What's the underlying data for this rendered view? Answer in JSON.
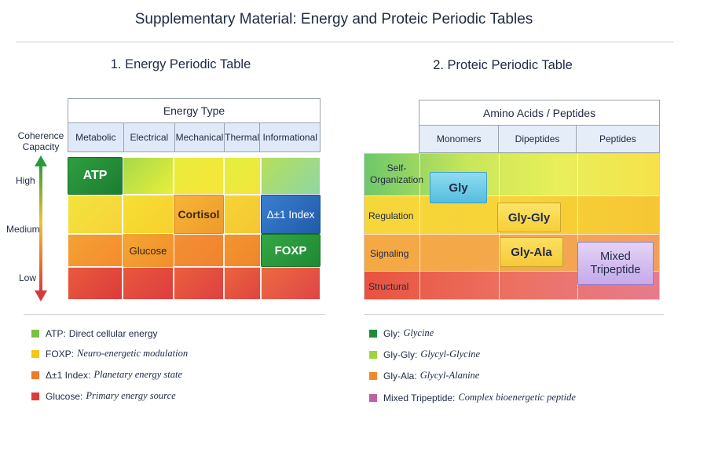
{
  "title": "Supplementary Material: Energy and Proteic Periodic Tables",
  "energy": {
    "section_title": "1. Energy Periodic Table",
    "header": "Energy Type",
    "columns": [
      "Metabolic",
      "Electrical",
      "Mechanical",
      "Thermal",
      "Informational"
    ],
    "axis_label": "Coherence Capacity",
    "axis_levels": [
      "High",
      "Medium",
      "Low"
    ],
    "tiles": {
      "atp": "ATP",
      "cortisol": "Cortisol",
      "index": "Δ±1 Index",
      "glucose": "Glucose",
      "foxp": "FOXP"
    },
    "legend": [
      {
        "term": "ATP:",
        "desc": "Direct cellular energy",
        "color": "#7ac143"
      },
      {
        "term": "FOXP:",
        "desc": "Neuro-energetic modulation",
        "color": "#f5c518"
      },
      {
        "term": "Δ±1 Index:",
        "desc": "Planetary energy state",
        "color": "#ee7b2a"
      },
      {
        "term": "Glucose:",
        "desc": "Primary energy source",
        "color": "#dd3b3b"
      }
    ]
  },
  "proteic": {
    "section_title": "2. Proteic Periodic Table",
    "header": "Amino Acids  /  Peptides",
    "columns": [
      "Monomers",
      "Dipeptides",
      "Peptides"
    ],
    "rows": [
      "Self-Organization",
      "Regulation",
      "Signaling",
      "Structural"
    ],
    "tiles": {
      "gly": "Gly",
      "glygly": "Gly-Gly",
      "glyala": "Gly-Ala",
      "mixed": "Mixed Tripeptide"
    },
    "legend": [
      {
        "term": "Gly:",
        "desc": "Glycine",
        "color": "#1e8a3a"
      },
      {
        "term": "Gly-Gly:",
        "desc": "Glycyl-Glycine",
        "color": "#9ed43b"
      },
      {
        "term": "Gly-Ala:",
        "desc": "Glycyl-Alanine",
        "color": "#ee8a2a"
      },
      {
        "term": "Mixed Tripeptide:",
        "desc": "Complex bioenergetic  peptide",
        "color": "#c060a8"
      }
    ]
  }
}
